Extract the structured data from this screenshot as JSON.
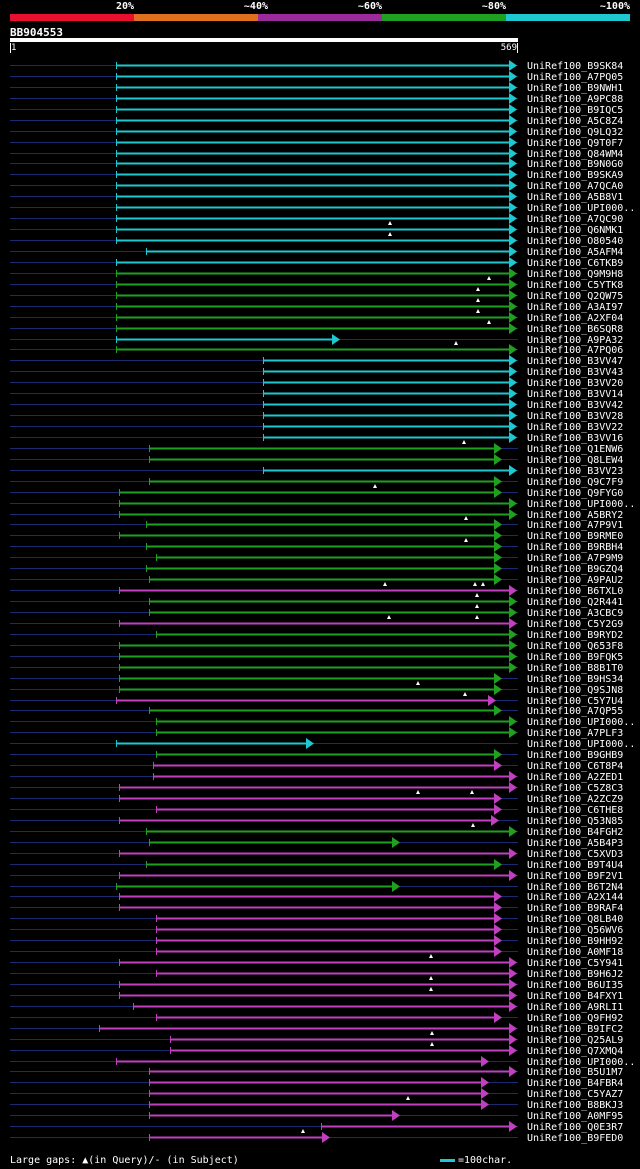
{
  "legend": {
    "labels": [
      "20%",
      "~40%",
      "~60%",
      "~80%",
      "~100%"
    ],
    "colors": [
      "#e8102e",
      "#e07020",
      "#9b2a9b",
      "#20a020",
      "#1ec8d0"
    ]
  },
  "query": {
    "id": "BB904553",
    "start_label": "1",
    "end_label": "569",
    "length": 569
  },
  "hits": [
    {
      "id": "UniRef100_B9SK84",
      "cls": "c",
      "s": 116,
      "g": []
    },
    {
      "id": "UniRef100_A7PQ05",
      "cls": "c",
      "s": 116,
      "g": []
    },
    {
      "id": "UniRef100_B9NWH1",
      "cls": "c",
      "s": 116,
      "g": []
    },
    {
      "id": "UniRef100_A9PC88",
      "cls": "c",
      "s": 116,
      "g": []
    },
    {
      "id": "UniRef100_B9IQC5",
      "cls": "c",
      "s": 116,
      "g": []
    },
    {
      "id": "UniRef100_A5C8Z4",
      "cls": "c",
      "s": 116,
      "g": []
    },
    {
      "id": "UniRef100_Q9LQ32",
      "cls": "c",
      "s": 116,
      "g": []
    },
    {
      "id": "UniRef100_Q9T0F7",
      "cls": "c",
      "s": 116,
      "g": []
    },
    {
      "id": "UniRef100_Q84WM4",
      "cls": "c",
      "s": 116,
      "g": []
    },
    {
      "id": "UniRef100_B9N0G0",
      "cls": "c",
      "s": 116,
      "g": []
    },
    {
      "id": "UniRef100_B9SKA9",
      "cls": "c",
      "s": 116,
      "g": []
    },
    {
      "id": "UniRef100_A7QCA0",
      "cls": "c",
      "s": 116,
      "g": []
    },
    {
      "id": "UniRef100_A5B8V1",
      "cls": "c",
      "s": 116,
      "g": []
    },
    {
      "id": "UniRef100_UPI000..",
      "cls": "c",
      "s": 116,
      "g": []
    },
    {
      "id": "UniRef100_A7QC90",
      "cls": "c",
      "s": 116,
      "g": []
    },
    {
      "id": "UniRef100_Q6NMK1",
      "cls": "c",
      "s": 116,
      "g": [
        390
      ]
    },
    {
      "id": "UniRef100_O80540",
      "cls": "c",
      "s": 116,
      "g": [
        390
      ]
    },
    {
      "id": "UniRef100_A5AFM4",
      "cls": "c",
      "s": 146,
      "g": []
    },
    {
      "id": "UniRef100_C6TKB9",
      "cls": "c",
      "s": 116,
      "g": []
    },
    {
      "id": "UniRef100_Q9M9H8",
      "cls": "g",
      "s": 116,
      "g": []
    },
    {
      "id": "UniRef100_C5YTK8",
      "cls": "g",
      "s": 116,
      "g": [
        489
      ]
    },
    {
      "id": "UniRef100_Q2QW75",
      "cls": "g",
      "s": 116,
      "g": [
        478
      ]
    },
    {
      "id": "UniRef100_A3AI97",
      "cls": "g",
      "s": 116,
      "g": [
        478
      ]
    },
    {
      "id": "UniRef100_A2XF04",
      "cls": "g",
      "s": 116,
      "g": [
        478
      ]
    },
    {
      "id": "UniRef100_B6SQR8",
      "cls": "g",
      "s": 116,
      "g": [
        489
      ]
    },
    {
      "id": "UniRef100_A9PA32",
      "cls": "c",
      "s": 116,
      "e": 338,
      "g": []
    },
    {
      "id": "UniRef100_A7PQ06",
      "cls": "g",
      "s": 116,
      "g": [
        456
      ]
    },
    {
      "id": "UniRef100_B3VV47",
      "cls": "c",
      "s": 263,
      "g": []
    },
    {
      "id": "UniRef100_B3VV43",
      "cls": "c",
      "s": 263,
      "g": []
    },
    {
      "id": "UniRef100_B3VV20",
      "cls": "c",
      "s": 263,
      "g": []
    },
    {
      "id": "UniRef100_B3VV14",
      "cls": "c",
      "s": 263,
      "g": []
    },
    {
      "id": "UniRef100_B3VV42",
      "cls": "c",
      "s": 263,
      "g": []
    },
    {
      "id": "UniRef100_B3VV28",
      "cls": "c",
      "s": 263,
      "g": []
    },
    {
      "id": "UniRef100_B3VV22",
      "cls": "c",
      "s": 263,
      "g": []
    },
    {
      "id": "UniRef100_B3VV16",
      "cls": "c",
      "s": 263,
      "g": []
    },
    {
      "id": "UniRef100_Q1ENW6",
      "cls": "g",
      "s": 149,
      "e": 500,
      "g": [
        464
      ]
    },
    {
      "id": "UniRef100_Q8LEW4",
      "cls": "g",
      "s": 149,
      "e": 500,
      "g": []
    },
    {
      "id": "UniRef100_B3VV23",
      "cls": "c",
      "s": 263,
      "g": []
    },
    {
      "id": "UniRef100_Q9C7F9",
      "cls": "g",
      "s": 149,
      "e": 500,
      "g": []
    },
    {
      "id": "UniRef100_Q9FYG0",
      "cls": "g",
      "s": 119,
      "e": 500,
      "g": [
        375
      ]
    },
    {
      "id": "UniRef100_UPI000..",
      "cls": "g",
      "s": 119,
      "g": []
    },
    {
      "id": "UniRef100_A5BRY2",
      "cls": "g",
      "s": 119,
      "g": []
    },
    {
      "id": "UniRef100_A7P9V1",
      "cls": "g",
      "s": 146,
      "e": 500,
      "g": [
        466
      ]
    },
    {
      "id": "UniRef100_B9RME0",
      "cls": "g",
      "s": 119,
      "e": 500,
      "g": []
    },
    {
      "id": "UniRef100_B9RBH4",
      "cls": "g",
      "s": 146,
      "e": 500,
      "g": [
        466
      ]
    },
    {
      "id": "UniRef100_A7P9M9",
      "cls": "g",
      "s": 156,
      "e": 500,
      "g": []
    },
    {
      "id": "UniRef100_B9GZQ4",
      "cls": "g",
      "s": 146,
      "e": 500,
      "g": []
    },
    {
      "id": "UniRef100_A9PAU2",
      "cls": "g",
      "s": 149,
      "e": 500,
      "g": []
    },
    {
      "id": "UniRef100_B6TXL0",
      "cls": "m",
      "s": 119,
      "g": [
        385,
        475,
        483
      ]
    },
    {
      "id": "UniRef100_Q2R441",
      "cls": "g",
      "s": 149,
      "g": [
        477
      ]
    },
    {
      "id": "UniRef100_A3CBC9",
      "cls": "g",
      "s": 149,
      "g": [
        477
      ]
    },
    {
      "id": "UniRef100_C5Y2G9",
      "cls": "m",
      "s": 119,
      "g": [
        389,
        477
      ]
    },
    {
      "id": "UniRef100_B9RYD2",
      "cls": "g",
      "s": 156,
      "g": []
    },
    {
      "id": "UniRef100_Q653F8",
      "cls": "g",
      "s": 119,
      "g": []
    },
    {
      "id": "UniRef100_B9FQK5",
      "cls": "g",
      "s": 119,
      "g": []
    },
    {
      "id": "UniRef100_B8B1T0",
      "cls": "g",
      "s": 119,
      "g": []
    },
    {
      "id": "UniRef100_B9HS34",
      "cls": "g",
      "s": 119,
      "e": 500,
      "g": []
    },
    {
      "id": "UniRef100_Q9SJN8",
      "cls": "g",
      "s": 119,
      "e": 500,
      "g": [
        418
      ]
    },
    {
      "id": "UniRef100_C5Y7U4",
      "cls": "m",
      "s": 116,
      "e": 494,
      "g": [
        465
      ]
    },
    {
      "id": "UniRef100_A7QP55",
      "cls": "g",
      "s": 149,
      "e": 500,
      "g": []
    },
    {
      "id": "UniRef100_UPI000..",
      "cls": "g",
      "s": 156,
      "g": []
    },
    {
      "id": "UniRef100_A7PLF3",
      "cls": "g",
      "s": 156,
      "g": []
    },
    {
      "id": "UniRef100_UPI000..",
      "cls": "c",
      "s": 116,
      "e": 312,
      "g": []
    },
    {
      "id": "UniRef100_B9GHB9",
      "cls": "g",
      "s": 156,
      "e": 500,
      "g": []
    },
    {
      "id": "UniRef100_C6T8P4",
      "cls": "m",
      "s": 153,
      "e": 500,
      "g": []
    },
    {
      "id": "UniRef100_A2ZED1",
      "cls": "m",
      "s": 153,
      "g": []
    },
    {
      "id": "UniRef100_C5Z8C3",
      "cls": "m",
      "s": 119,
      "g": []
    },
    {
      "id": "UniRef100_A2ZCZ9",
      "cls": "m",
      "s": 119,
      "e": 500,
      "g": [
        418,
        472
      ]
    },
    {
      "id": "UniRef100_C6THE8",
      "cls": "m",
      "s": 156,
      "e": 500,
      "g": []
    },
    {
      "id": "UniRef100_Q53N85",
      "cls": "m",
      "s": 119,
      "e": 497,
      "g": []
    },
    {
      "id": "UniRef100_B4FGH2",
      "cls": "g",
      "s": 146,
      "g": [
        473
      ]
    },
    {
      "id": "UniRef100_A5B4P3",
      "cls": "g",
      "s": 149,
      "e": 398,
      "g": []
    },
    {
      "id": "UniRef100_C5XVD3",
      "cls": "m",
      "s": 119,
      "g": []
    },
    {
      "id": "UniRef100_B9T4U4",
      "cls": "g",
      "s": 146,
      "e": 500,
      "g": []
    },
    {
      "id": "UniRef100_B9F2V1",
      "cls": "m",
      "s": 119,
      "g": []
    },
    {
      "id": "UniRef100_B6T2N4",
      "cls": "g",
      "s": 116,
      "e": 398,
      "g": []
    },
    {
      "id": "UniRef100_A2X144",
      "cls": "m",
      "s": 119,
      "e": 500,
      "g": []
    },
    {
      "id": "UniRef100_B9RAF4",
      "cls": "m",
      "s": 119,
      "e": 500,
      "g": []
    },
    {
      "id": "UniRef100_Q8LB40",
      "cls": "m",
      "s": 156,
      "e": 500,
      "g": []
    },
    {
      "id": "UniRef100_Q56WV6",
      "cls": "m",
      "s": 156,
      "e": 500,
      "g": []
    },
    {
      "id": "UniRef100_B9HH92",
      "cls": "m",
      "s": 156,
      "e": 500,
      "g": []
    },
    {
      "id": "UniRef100_A0MF18",
      "cls": "m",
      "s": 156,
      "e": 500,
      "g": []
    },
    {
      "id": "UniRef100_C5Y941",
      "cls": "m",
      "s": 119,
      "g": [
        431
      ]
    },
    {
      "id": "UniRef100_B9H6J2",
      "cls": "m",
      "s": 156,
      "g": []
    },
    {
      "id": "UniRef100_B6UI35",
      "cls": "m",
      "s": 119,
      "g": [
        431
      ]
    },
    {
      "id": "UniRef100_B4FXY1",
      "cls": "m",
      "s": 119,
      "g": [
        431
      ]
    },
    {
      "id": "UniRef100_A9RLI1",
      "cls": "m",
      "s": 133,
      "g": []
    },
    {
      "id": "UniRef100_Q9FH92",
      "cls": "m",
      "s": 156,
      "e": 500,
      "g": []
    },
    {
      "id": "UniRef100_B9IFC2",
      "cls": "m",
      "s": 99,
      "g": []
    },
    {
      "id": "UniRef100_Q25AL9",
      "cls": "m",
      "s": 170,
      "g": [
        432
      ]
    },
    {
      "id": "UniRef100_Q7XMQ4",
      "cls": "m",
      "s": 170,
      "g": [
        432
      ]
    },
    {
      "id": "UniRef100_UPI000..",
      "cls": "m",
      "s": 116,
      "e": 487,
      "g": []
    },
    {
      "id": "UniRef100_B5U1M7",
      "cls": "m",
      "s": 149,
      "g": []
    },
    {
      "id": "UniRef100_B4FBR4",
      "cls": "m",
      "s": 149,
      "e": 487,
      "g": []
    },
    {
      "id": "UniRef100_C5YAZ7",
      "cls": "m",
      "s": 149,
      "e": 487,
      "g": []
    },
    {
      "id": "UniRef100_B8BKJ3",
      "cls": "m",
      "s": 149,
      "e": 487,
      "g": [
        408
      ]
    },
    {
      "id": "UniRef100_A0MF95",
      "cls": "m",
      "s": 149,
      "e": 398,
      "g": []
    },
    {
      "id": "UniRef100_Q0E3R7",
      "cls": "m",
      "s": 321,
      "g": []
    },
    {
      "id": "UniRef100_B9FED0",
      "cls": "m",
      "s": 149,
      "e": 328,
      "g": [
        303
      ]
    }
  ],
  "footer": {
    "left_text": "Large gaps: ▲(in Query)/- (in Subject)",
    "right_text": "=100char."
  }
}
